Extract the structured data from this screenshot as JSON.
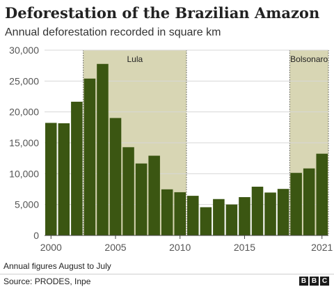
{
  "header": {
    "title": "Deforestation of the Brazilian Amazon",
    "subtitle": "Annual deforestation recorded in square km"
  },
  "footer": {
    "note": "Annual figures August to July",
    "source": "Source: PRODES, Inpe",
    "logo": [
      "B",
      "B",
      "C"
    ]
  },
  "colors": {
    "bar": "#3b5612",
    "shade": "#d8d6b4",
    "grid": "#d7d7d7",
    "text": "#222222"
  },
  "chart_data": {
    "type": "bar",
    "title": "Deforestation of the Brazilian Amazon",
    "subtitle": "Annual deforestation recorded in square km",
    "xlabel": "",
    "ylabel": "",
    "ylim": [
      0,
      30000
    ],
    "grid": true,
    "y_ticks": [
      0,
      5000,
      10000,
      15000,
      20000,
      25000,
      30000
    ],
    "y_tick_labels": [
      "0",
      "5,000",
      "10,000",
      "15,000",
      "20,000",
      "25,000",
      "30,000"
    ],
    "x_tick_years": [
      2000,
      2005,
      2010,
      2015,
      2021
    ],
    "x_tick_labels": [
      "2000",
      "2005",
      "2010",
      "2015",
      "2021"
    ],
    "categories": [
      2000,
      2001,
      2002,
      2003,
      2004,
      2005,
      2006,
      2007,
      2008,
      2009,
      2010,
      2011,
      2012,
      2013,
      2014,
      2015,
      2016,
      2017,
      2018,
      2019,
      2020,
      2021
    ],
    "values": [
      18226,
      18165,
      21651,
      25396,
      27772,
      19014,
      14286,
      11651,
      12911,
      7464,
      7000,
      6418,
      4571,
      5891,
      5012,
      6207,
      7893,
      6947,
      7536,
      10129,
      10851,
      13235
    ],
    "annotations": [
      {
        "label": "Lula",
        "from": 2003,
        "to": 2010
      },
      {
        "label": "Bolsonaro",
        "from": 2019,
        "to": 2021
      }
    ]
  }
}
